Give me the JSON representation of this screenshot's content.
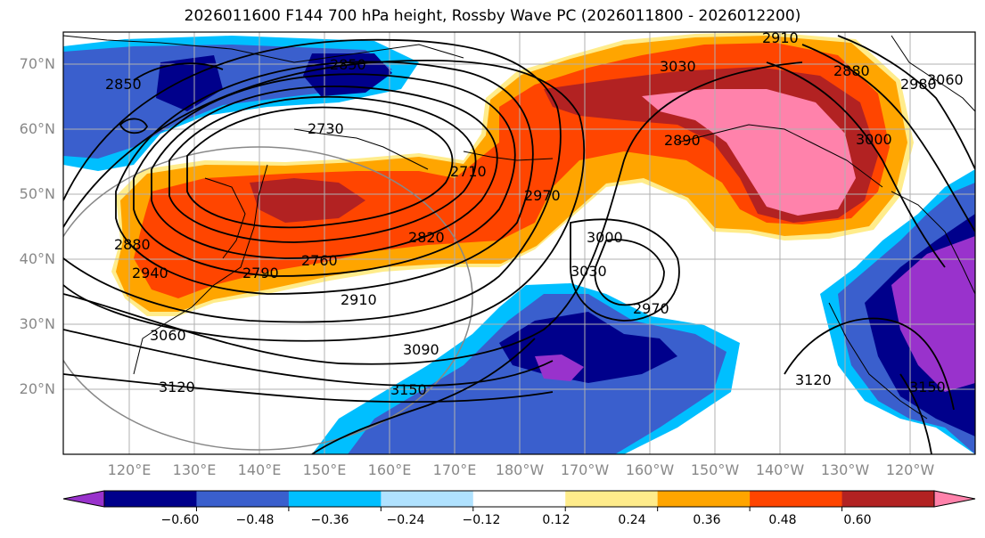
{
  "title": "2026011600 F144 700 hPa height, Rossby Wave PC (2026011800 - 2026012200)",
  "lat_labels": [
    "70°N",
    "60°N",
    "50°N",
    "40°N",
    "30°N",
    "20°N"
  ],
  "lon_labels": [
    "120°E",
    "130°E",
    "140°E",
    "150°E",
    "160°E",
    "170°E",
    "180°W",
    "170°W",
    "160°W",
    "150°W",
    "140°W",
    "130°W",
    "120°W"
  ],
  "colorbar": {
    "colors": [
      "#9932cc",
      "#00008b",
      "#3a5fcd",
      "#00bfff",
      "#b0e2ff",
      "#ffffff",
      "#ffec8b",
      "#ffa500",
      "#ff4500",
      "#b22222",
      "#ff82ab"
    ],
    "tick_labels": [
      "−0.60",
      "−0.48",
      "−0.36",
      "−0.24",
      "−0.12",
      "0.12",
      "0.24",
      "0.36",
      "0.48",
      "0.60"
    ]
  },
  "contour_labels": [
    "2850",
    "2850",
    "2730",
    "2710",
    "2970",
    "3030",
    "2910",
    "2880",
    "2980",
    "3000",
    "2890",
    "2820",
    "2760",
    "2790",
    "2880",
    "2940",
    "2910",
    "3000",
    "3030",
    "2970",
    "3060",
    "3090",
    "3120",
    "3150",
    "3120",
    "3150",
    "3060"
  ]
}
